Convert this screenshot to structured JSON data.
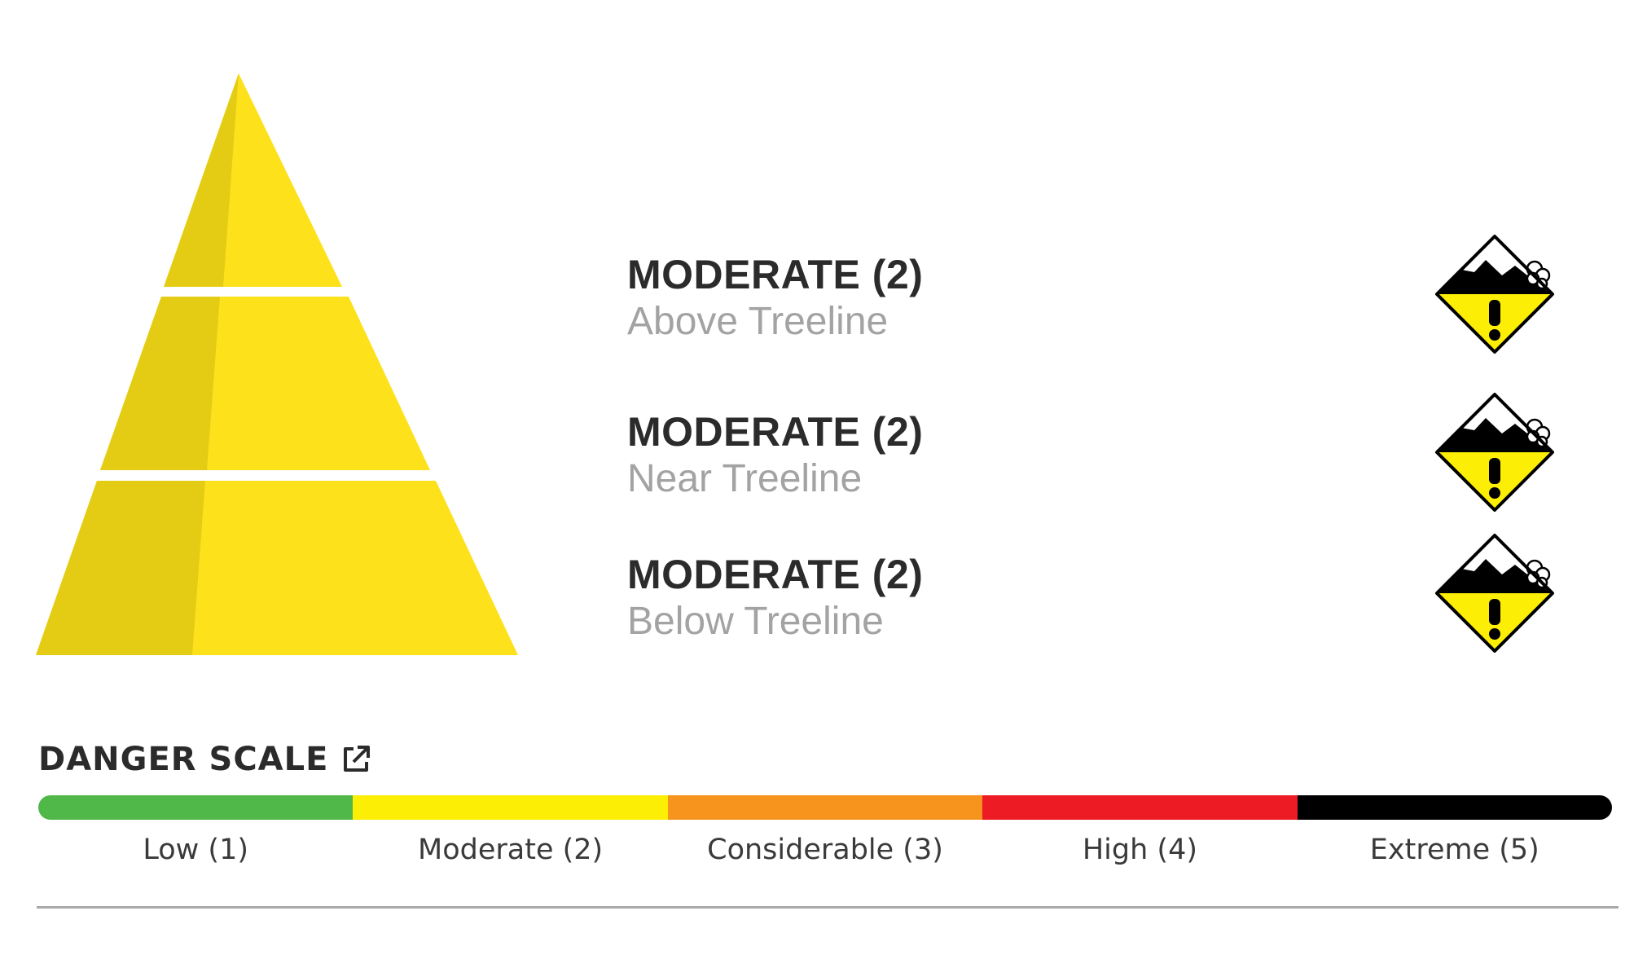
{
  "forecast": {
    "levels": [
      {
        "rating": "MODERATE (2)",
        "elevation": "Above Treeline",
        "danger_level": 2,
        "icon": "moderate-danger-icon"
      },
      {
        "rating": "MODERATE (2)",
        "elevation": "Near Treeline",
        "danger_level": 2,
        "icon": "moderate-danger-icon"
      },
      {
        "rating": "MODERATE (2)",
        "elevation": "Below Treeline",
        "danger_level": 2,
        "icon": "moderate-danger-icon"
      }
    ],
    "pyramid_colors": {
      "light": "#fde11b",
      "shade": "#e4cc14"
    }
  },
  "danger_scale": {
    "title": "DANGER SCALE",
    "title_icon": "external-link-icon",
    "levels": [
      {
        "label": "Low (1)",
        "color": "#4fb848"
      },
      {
        "label": "Moderate (2)",
        "color": "#fdee06"
      },
      {
        "label": "Considerable (3)",
        "color": "#f7941e"
      },
      {
        "label": "High (4)",
        "color": "#ed1c24"
      },
      {
        "label": "Extreme (5)",
        "color": "#000000"
      }
    ]
  }
}
